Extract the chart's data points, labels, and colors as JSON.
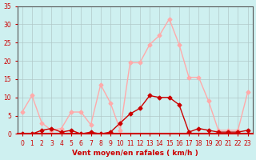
{
  "hours": [
    0,
    1,
    2,
    3,
    4,
    5,
    6,
    7,
    8,
    9,
    10,
    11,
    12,
    13,
    14,
    15,
    16,
    17,
    18,
    19,
    20,
    21,
    22,
    23
  ],
  "rafales": [
    6,
    10.5,
    3,
    1,
    1.5,
    6,
    6,
    2.5,
    13.5,
    8.5,
    1,
    19.5,
    19.5,
    24.5,
    27,
    31.5,
    24.5,
    15.5,
    15.5,
    9,
    1,
    1,
    1,
    11.5
  ],
  "moyen": [
    0,
    0,
    1,
    1.5,
    0.5,
    1,
    0,
    0.5,
    0,
    0.5,
    3,
    5.5,
    7,
    10.5,
    10,
    10,
    8,
    0.5,
    1.5,
    1,
    0.5,
    0.5,
    0.5,
    1
  ],
  "ylim": [
    0,
    35
  ],
  "yticks": [
    0,
    5,
    10,
    15,
    20,
    25,
    30,
    35
  ],
  "xlabel": "Vent moyen/en rafales ( km/h )",
  "color_rafales": "#ffaaaa",
  "color_moyen": "#cc0000",
  "bg_color": "#cef0f0",
  "grid_color": "#b0c8c8",
  "axis_color": "#cc0000",
  "line_width": 1.0,
  "marker_size": 2.5,
  "tick_fontsize": 5.5,
  "xlabel_fontsize": 6.5
}
